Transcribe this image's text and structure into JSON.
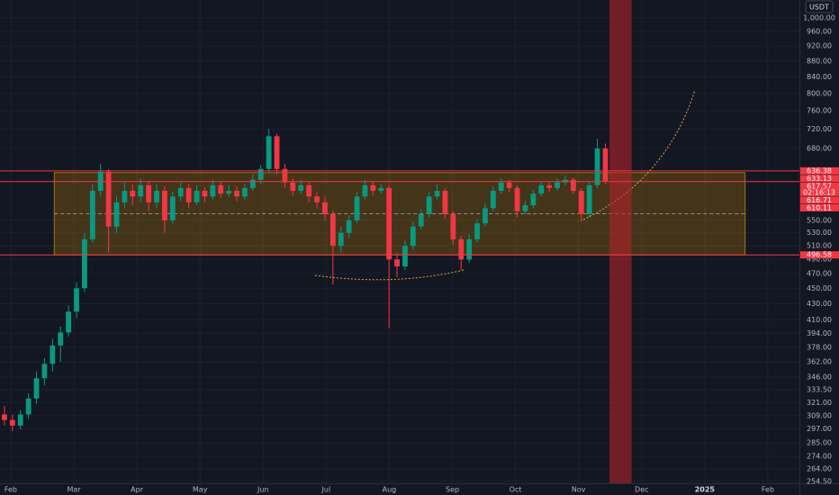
{
  "chart_data": {
    "type": "candlestick",
    "currency": "USDT",
    "countdown": "02:16:13",
    "log_scale": true,
    "grid": true,
    "up_color": "#089981",
    "down_color": "#f23645",
    "xlim": [
      -0.17,
      12.5
    ],
    "xticks": [
      {
        "value": 0,
        "label": "Feb"
      },
      {
        "value": 1,
        "label": "Mar"
      },
      {
        "value": 2,
        "label": "Apr"
      },
      {
        "value": 3,
        "label": "May"
      },
      {
        "value": 4,
        "label": "Jun"
      },
      {
        "value": 5,
        "label": "Jul"
      },
      {
        "value": 6,
        "label": "Aug"
      },
      {
        "value": 7,
        "label": "Sep"
      },
      {
        "value": 8,
        "label": "Oct"
      },
      {
        "value": 9,
        "label": "Nov"
      },
      {
        "value": 10,
        "label": "Dec"
      },
      {
        "value": 11,
        "label": "2025"
      },
      {
        "value": 12,
        "label": "Feb"
      }
    ],
    "ylim": [
      253,
      1054
    ],
    "yticks": [
      {
        "value": 1000,
        "label": "1,000.00"
      },
      {
        "value": 960,
        "label": "960.00"
      },
      {
        "value": 920,
        "label": "920.00"
      },
      {
        "value": 880,
        "label": "880.00"
      },
      {
        "value": 840,
        "label": "840.00"
      },
      {
        "value": 800,
        "label": "800.00"
      },
      {
        "value": 760,
        "label": "760.00"
      },
      {
        "value": 720,
        "label": "720.00"
      },
      {
        "value": 680,
        "label": "680.00"
      },
      {
        "value": 550,
        "label": "550.00"
      },
      {
        "value": 530,
        "label": "530.00"
      },
      {
        "value": 510,
        "label": "510.00"
      },
      {
        "value": 490,
        "label": "490.00"
      },
      {
        "value": 470,
        "label": "470.00"
      },
      {
        "value": 450,
        "label": "450.00"
      },
      {
        "value": 430,
        "label": "430.00"
      },
      {
        "value": 410,
        "label": "410.00"
      },
      {
        "value": 394,
        "label": "394.00"
      },
      {
        "value": 378,
        "label": "378.00"
      },
      {
        "value": 362,
        "label": "362.00"
      },
      {
        "value": 346,
        "label": "346.00"
      },
      {
        "value": 333.5,
        "label": "333.50"
      },
      {
        "value": 321,
        "label": "321.00"
      },
      {
        "value": 309,
        "label": "309.00"
      },
      {
        "value": 297,
        "label": "297.00"
      },
      {
        "value": 285,
        "label": "285.00"
      },
      {
        "value": 274,
        "label": "274.00"
      },
      {
        "value": 264,
        "label": "264.00"
      },
      {
        "value": 254.5,
        "label": "254.50"
      }
    ],
    "candles": {
      "x": [
        -0.1,
        0.027,
        0.154,
        0.281,
        0.408,
        0.535,
        0.662,
        0.789,
        0.916,
        1.043,
        1.17,
        1.297,
        1.424,
        1.551,
        1.678,
        1.805,
        1.932,
        2.059,
        2.186,
        2.313,
        2.44,
        2.567,
        2.694,
        2.821,
        2.948,
        3.075,
        3.202,
        3.329,
        3.456,
        3.583,
        3.71,
        3.837,
        3.964,
        4.091,
        4.218,
        4.345,
        4.472,
        4.599,
        4.726,
        4.853,
        4.98,
        5.107,
        5.234,
        5.361,
        5.488,
        5.615,
        5.742,
        5.869,
        5.996,
        6.123,
        6.25,
        6.377,
        6.504,
        6.631,
        6.758,
        6.885,
        7.012,
        7.139,
        7.266,
        7.393,
        7.52,
        7.647,
        7.774,
        7.901,
        8.028,
        8.155,
        8.282,
        8.409,
        8.536,
        8.663,
        8.79,
        8.917,
        9.044,
        9.171,
        9.298,
        9.425
      ],
      "open": [
        310,
        305,
        300,
        310,
        325,
        345,
        360,
        380,
        395,
        420,
        450,
        520,
        600,
        635,
        540,
        580,
        600,
        590,
        610,
        580,
        600,
        550,
        590,
        605,
        580,
        600,
        590,
        610,
        595,
        600,
        590,
        605,
        620,
        640,
        705,
        640,
        615,
        600,
        610,
        590,
        580,
        560,
        510,
        530,
        550,
        590,
        610,
        600,
        605,
        490,
        480,
        510,
        540,
        560,
        590,
        600,
        560,
        520,
        490,
        520,
        545,
        570,
        600,
        615,
        605,
        565,
        575,
        595,
        610,
        605,
        615,
        620,
        600,
        560,
        610,
        680
      ],
      "high": [
        318,
        310,
        314,
        330,
        352,
        366,
        388,
        402,
        428,
        458,
        530,
        612,
        650,
        640,
        590,
        615,
        612,
        622,
        618,
        612,
        608,
        598,
        615,
        612,
        610,
        606,
        620,
        616,
        610,
        608,
        612,
        630,
        648,
        720,
        710,
        650,
        622,
        620,
        615,
        598,
        590,
        566,
        540,
        558,
        598,
        620,
        618,
        612,
        610,
        500,
        518,
        548,
        568,
        598,
        612,
        605,
        565,
        525,
        528,
        552,
        578,
        608,
        622,
        620,
        610,
        582,
        602,
        618,
        616,
        622,
        628,
        624,
        605,
        618,
        700,
        690
      ],
      "low": [
        300,
        295,
        297,
        306,
        320,
        338,
        352,
        362,
        390,
        412,
        445,
        515,
        590,
        500,
        530,
        570,
        575,
        580,
        565,
        570,
        530,
        545,
        582,
        570,
        575,
        580,
        585,
        588,
        590,
        582,
        585,
        600,
        612,
        632,
        630,
        605,
        592,
        595,
        580,
        570,
        550,
        455,
        500,
        522,
        545,
        585,
        592,
        595,
        400,
        465,
        475,
        505,
        535,
        555,
        585,
        552,
        512,
        475,
        485,
        515,
        540,
        565,
        595,
        598,
        555,
        560,
        570,
        590,
        598,
        600,
        610,
        595,
        548,
        555,
        605,
        612
      ],
      "close": [
        305,
        300,
        310,
        325,
        345,
        360,
        380,
        395,
        420,
        450,
        520,
        600,
        635,
        540,
        580,
        600,
        590,
        610,
        580,
        600,
        550,
        590,
        605,
        580,
        600,
        590,
        610,
        595,
        600,
        590,
        605,
        620,
        640,
        705,
        640,
        615,
        600,
        610,
        590,
        580,
        560,
        510,
        530,
        550,
        590,
        610,
        600,
        605,
        490,
        480,
        510,
        540,
        560,
        590,
        600,
        560,
        520,
        490,
        520,
        545,
        570,
        600,
        615,
        605,
        565,
        575,
        595,
        610,
        605,
        615,
        620,
        600,
        560,
        610,
        680,
        617.57
      ]
    },
    "box": {
      "x": [
        0.69,
        11.64
      ],
      "top": 633.13,
      "bottom": 496.58,
      "color": "#f7a600"
    },
    "levels": [
      {
        "value": 636.38,
        "color": "#f23645"
      },
      {
        "value": 616.71,
        "color": "#f23645"
      },
      {
        "value": 496.58,
        "color": "#f23645"
      }
    ],
    "extra_label": {
      "value": 610.11,
      "color": "#f23645"
    },
    "highlight_x": {
      "range": [
        9.49,
        9.84
      ],
      "color": "#b2222b"
    }
  }
}
